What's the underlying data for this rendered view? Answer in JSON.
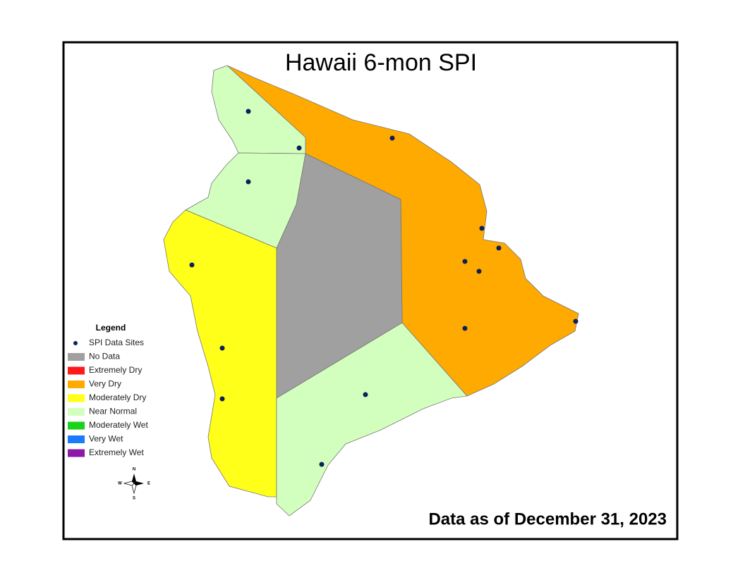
{
  "title": "Hawaii 6-mon SPI",
  "legend": {
    "title": "Legend",
    "items": [
      {
        "label": "SPI Data Sites",
        "symbol": "dot",
        "color": "#0d1f5c"
      },
      {
        "label": "No Data",
        "symbol": "box",
        "color": "#a0a0a0"
      },
      {
        "label": "Extremely Dry",
        "symbol": "box",
        "color": "#ff1a1a"
      },
      {
        "label": "Very Dry",
        "symbol": "box",
        "color": "#ffaa00"
      },
      {
        "label": "Moderately Dry",
        "symbol": "box",
        "color": "#ffff1a"
      },
      {
        "label": "Near Normal",
        "symbol": "box",
        "color": "#d3ffbe"
      },
      {
        "label": "Moderately Wet",
        "symbol": "box",
        "color": "#1ad21a"
      },
      {
        "label": "Very Wet",
        "symbol": "box",
        "color": "#1a7aff"
      },
      {
        "label": "Extremely Wet",
        "symbol": "box",
        "color": "#8c1aa8"
      }
    ]
  },
  "compass": {
    "north": "N",
    "south": "S",
    "east": "E",
    "west": "W"
  },
  "date_note": "Data as of December 31, 2023"
}
